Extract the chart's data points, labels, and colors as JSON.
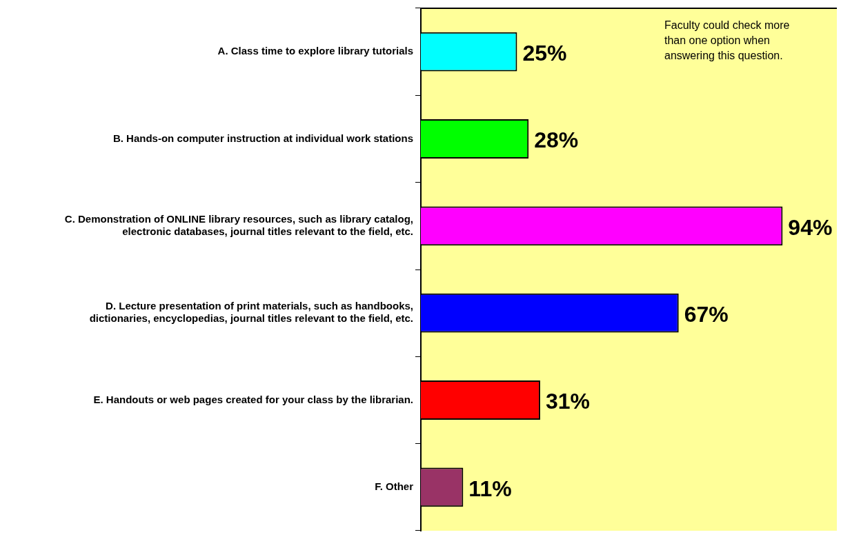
{
  "chart_data": {
    "type": "bar",
    "orientation": "horizontal",
    "categories": [
      "A. Class time to explore library tutorials",
      "B. Hands-on computer instruction at individual work stations",
      "C. Demonstration of ONLINE library resources, such as library catalog, electronic databases, journal titles relevant to the field, etc.",
      "D. Lecture presentation of print materials, such as handbooks, dictionaries, encyclopedias, journal titles relevant to the field, etc.",
      "E. Handouts or web pages created for your class by the librarian.",
      "F. Other"
    ],
    "values": [
      25,
      28,
      94,
      67,
      31,
      11
    ],
    "colors": [
      "#00ffff",
      "#00ff00",
      "#ff00ff",
      "#0000ff",
      "#ff0000",
      "#993366"
    ],
    "value_labels": [
      "25%",
      "28%",
      "94%",
      "67%",
      "31%",
      "11%"
    ],
    "annotations": [
      "Faculty could check more than one option when answering this question."
    ],
    "legend": false
  }
}
